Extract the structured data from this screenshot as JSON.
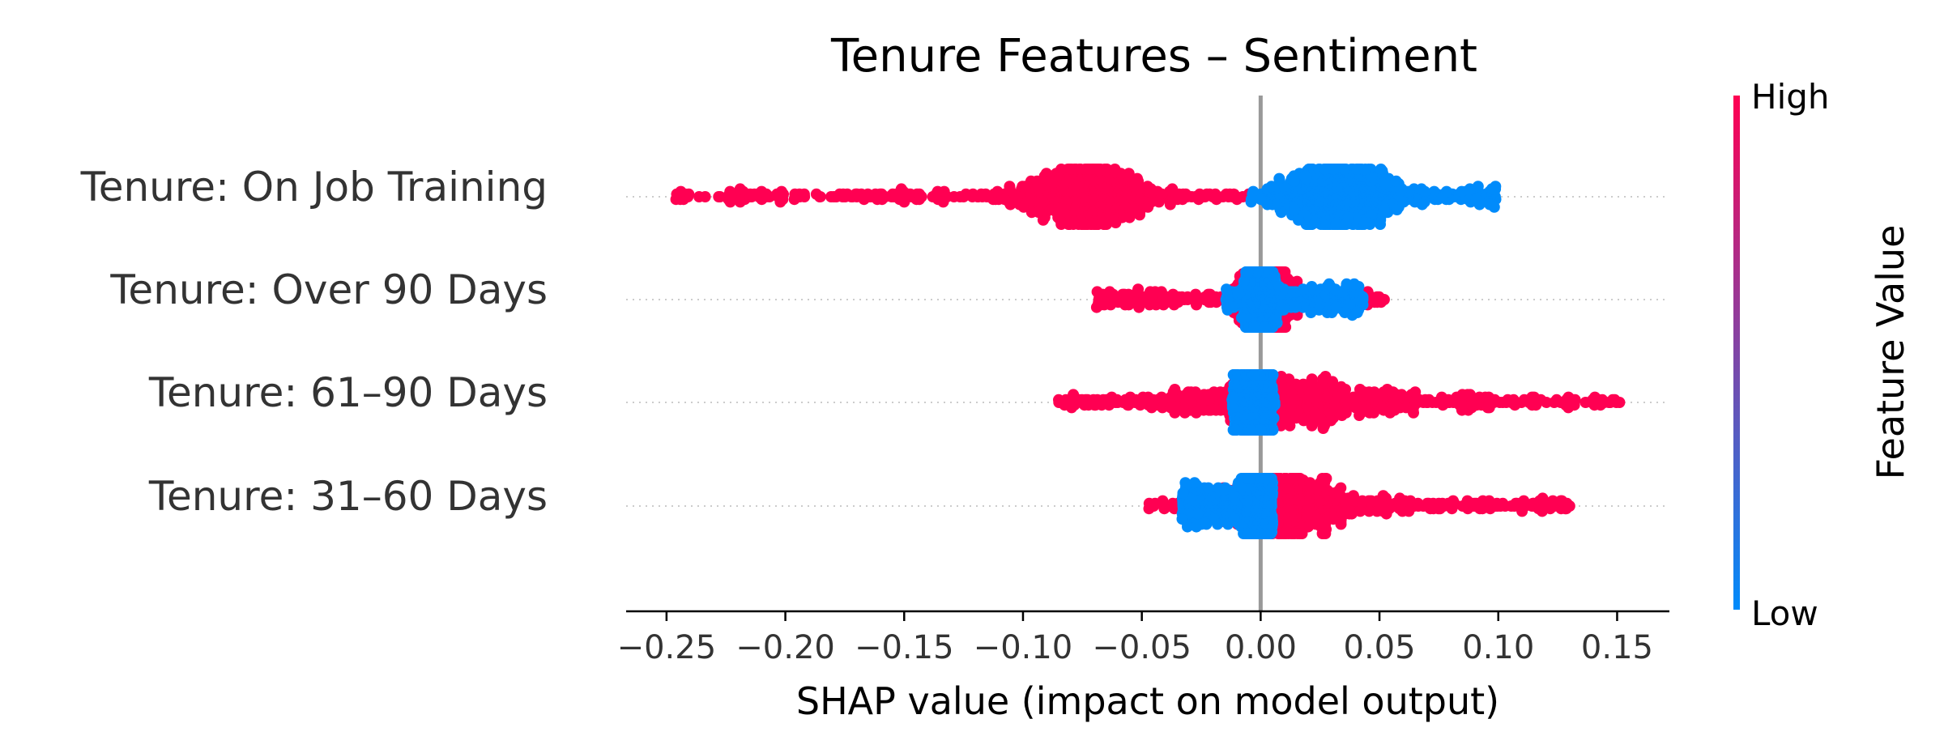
{
  "chart_data": {
    "type": "scatter",
    "subtype": "shap-beeswarm",
    "title": "Tenure Features – Sentiment",
    "xlabel": "SHAP value (impact on model output)",
    "xlim": [
      -0.267,
      0.172
    ],
    "xticks": [
      -0.25,
      -0.2,
      -0.15,
      -0.1,
      -0.05,
      0.0,
      0.05,
      0.1,
      0.15
    ],
    "xtick_labels": [
      "−0.25",
      "−0.20",
      "−0.15",
      "−0.10",
      "−0.05",
      "0.00",
      "0.05",
      "0.10",
      "0.15"
    ],
    "zero_line": true,
    "colors": {
      "high": "#ff0052",
      "low": "#008bfb",
      "zero_line": "#999999",
      "grid": "#cccccc",
      "axis": "#000000"
    },
    "colorbar": {
      "title": "Feature Value",
      "high_label": "High",
      "low_label": "Low",
      "placement": "right"
    },
    "features": [
      {
        "name": "Tenure: On Job Training",
        "high": {
          "min": -0.246,
          "max": -0.002,
          "dense_center": -0.073,
          "dense_spread": 0.015,
          "outliers": [
            -0.246,
            -0.244,
            -0.219,
            -0.213,
            -0.208
          ]
        },
        "low": {
          "min": -0.004,
          "max": 0.099,
          "dense_center": 0.033,
          "dense_spread": 0.012,
          "outliers": []
        }
      },
      {
        "name": "Tenure: Over 90 Days",
        "high": {
          "min": -0.069,
          "max": 0.052,
          "dense_center": 0.002,
          "dense_spread": 0.006,
          "outliers": [
            -0.069,
            -0.06,
            -0.057,
            0.052
          ]
        },
        "low": {
          "min": -0.015,
          "max": 0.043,
          "dense_center": 0.0,
          "dense_spread": 0.003,
          "outliers": [
            0.043
          ]
        }
      },
      {
        "name": "Tenure: 61–90 Days",
        "high": {
          "min": -0.085,
          "max": 0.151,
          "dense_center": 0.01,
          "dense_spread": 0.03,
          "outliers": [
            -0.085,
            0.143,
            0.151
          ]
        },
        "low": {
          "min": -0.012,
          "max": 0.006,
          "dense_center": -0.001,
          "dense_spread": 0.002,
          "outliers": []
        }
      },
      {
        "name": "Tenure: 31–60 Days",
        "high": {
          "min": -0.047,
          "max": 0.13,
          "dense_center": 0.01,
          "dense_spread": 0.015,
          "outliers": [
            -0.047,
            0.081,
            0.087,
            0.09,
            0.11,
            0.13
          ]
        },
        "low": {
          "min": -0.033,
          "max": 0.005,
          "dense_center": -0.002,
          "dense_spread": 0.003,
          "outliers": [
            -0.033
          ]
        }
      }
    ]
  }
}
